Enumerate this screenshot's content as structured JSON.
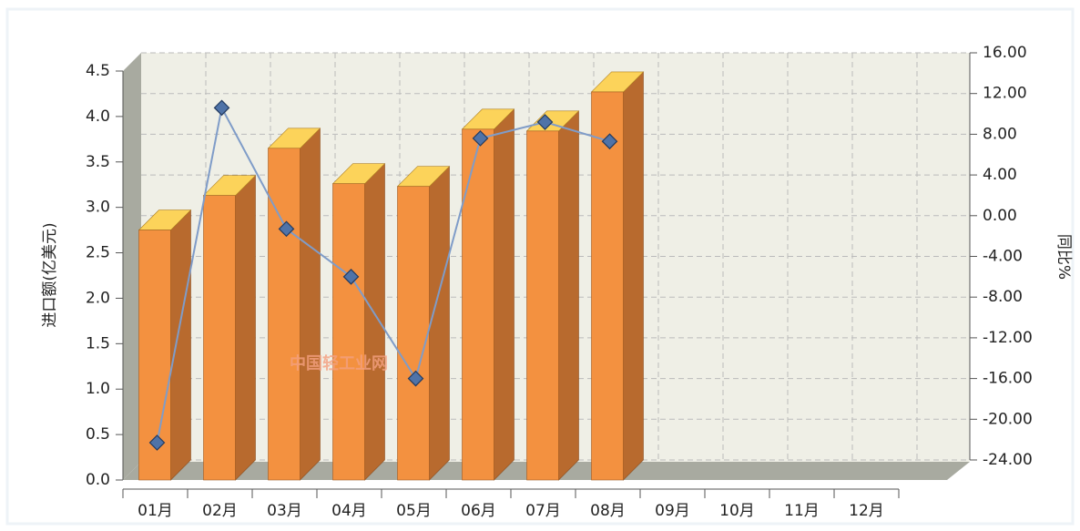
{
  "chart_data": {
    "type": "bar3d-line",
    "y_label": "进口额(亿美元)",
    "y2_label": "同比%",
    "watermark": "中国轻工业网",
    "categories": [
      "01月",
      "02月",
      "03月",
      "04月",
      "05月",
      "06月",
      "07月",
      "08月",
      "09月",
      "10月",
      "11月",
      "12月"
    ],
    "series": [
      {
        "name": "进口额",
        "type": "bar",
        "color": "#f39140",
        "values": [
          2.75,
          3.13,
          3.65,
          3.26,
          3.23,
          3.86,
          3.84,
          4.27,
          null,
          null,
          null,
          null
        ]
      },
      {
        "name": "同比",
        "type": "line",
        "axis": "y2",
        "color": "#7f9cc8",
        "values": [
          -22.3,
          10.6,
          -1.3,
          -6.0,
          -16.0,
          7.6,
          9.2,
          7.3,
          null,
          null,
          null,
          null
        ]
      }
    ],
    "ylim": [
      0,
      4.5
    ],
    "yticks": [
      {
        "value": 0,
        "label": "0.0"
      },
      0.5,
      {
        "value": 1,
        "label": "1.0"
      },
      1.5,
      {
        "value": 2,
        "label": "2.0"
      },
      2.5,
      {
        "value": 3,
        "label": "3.0"
      },
      3.5,
      {
        "value": 4,
        "label": "4.0"
      },
      4.5
    ],
    "y2lim": [
      -24,
      16
    ],
    "y2ticks": [
      {
        "value": 16,
        "label": "16.00"
      },
      {
        "value": 12,
        "label": "12.00"
      },
      {
        "value": 8,
        "label": "8.00"
      },
      {
        "value": 4,
        "label": "4.00"
      },
      {
        "value": 0,
        "label": "0.00"
      },
      {
        "value": -4,
        "label": "-4.00"
      },
      {
        "value": -8,
        "label": "-8.00"
      },
      {
        "value": -12,
        "label": "-12.00"
      },
      {
        "value": -16,
        "label": "-16.00"
      },
      {
        "value": -20,
        "label": "-20.00"
      },
      {
        "value": -24,
        "label": "-24.00"
      }
    ],
    "grid": true
  }
}
